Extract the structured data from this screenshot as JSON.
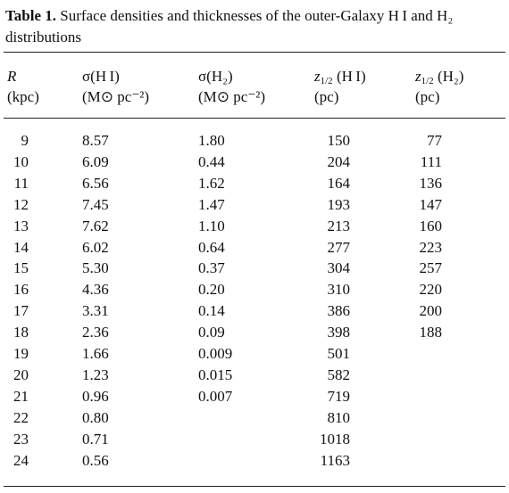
{
  "caption": {
    "label": "Table 1.",
    "text": "Surface densities and thicknesses of the outer-Galaxy H I and H₂ distributions"
  },
  "table": {
    "header": [
      {
        "line1": "R",
        "line2": "(kpc)"
      },
      {
        "line1": "σ(H I)",
        "line2": "(M⊙ pc⁻²)"
      },
      {
        "line1": "σ(H₂)",
        "line2": "(M⊙ pc⁻²)"
      },
      {
        "line1": {
          "sym": "z",
          "sub": "1/2",
          "rest": "(H I)"
        },
        "line2": "(pc)"
      },
      {
        "line1": {
          "sym": "z",
          "sub": "1/2",
          "rest": "(H₂)"
        },
        "line2": "(pc)"
      }
    ],
    "rows": [
      [
        "9",
        "8.57",
        "1.80",
        "150",
        "77"
      ],
      [
        "10",
        "6.09",
        "0.44",
        "204",
        "111"
      ],
      [
        "11",
        "6.56",
        "1.62",
        "164",
        "136"
      ],
      [
        "12",
        "7.45",
        "1.47",
        "193",
        "147"
      ],
      [
        "13",
        "7.62",
        "1.10",
        "213",
        "160"
      ],
      [
        "14",
        "6.02",
        "0.64",
        "277",
        "223"
      ],
      [
        "15",
        "5.30",
        "0.37",
        "304",
        "257"
      ],
      [
        "16",
        "4.36",
        "0.20",
        "310",
        "220"
      ],
      [
        "17",
        "3.31",
        "0.14",
        "386",
        "200"
      ],
      [
        "18",
        "2.36",
        "0.09",
        "398",
        "188"
      ],
      [
        "19",
        "1.66",
        "0.009",
        "501",
        null
      ],
      [
        "20",
        "1.23",
        "0.015",
        "582",
        null
      ],
      [
        "21",
        "0.96",
        "0.007",
        "719",
        null
      ],
      [
        "22",
        "0.80",
        null,
        "810",
        null
      ],
      [
        "23",
        "0.71",
        null,
        "1018",
        null
      ],
      [
        "24",
        "0.56",
        null,
        "1163",
        null
      ]
    ]
  }
}
